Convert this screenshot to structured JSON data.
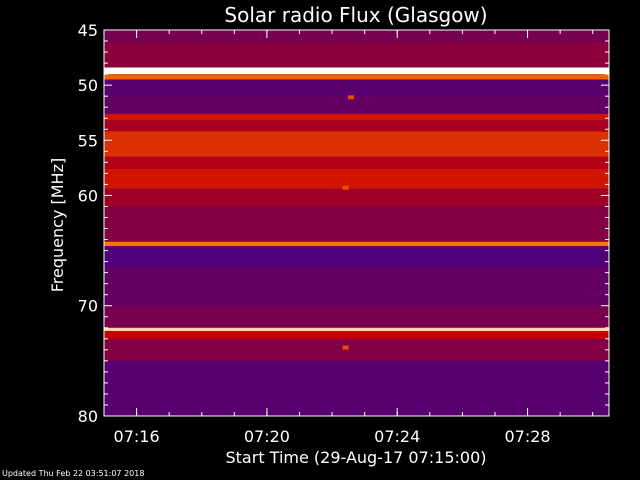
{
  "chart_data": {
    "type": "heatmap",
    "title": "Solar radio Flux (Glasgow)",
    "xlabel": "Start Time (29-Aug-17 07:15:00)",
    "ylabel": "Frequency [MHz]",
    "xlim": [
      "07:15:00",
      "07:30:30"
    ],
    "ylim": [
      45,
      80
    ],
    "y_axis_direction": "increasing downward",
    "x_ticks": [
      "07:16",
      "07:20",
      "07:24",
      "07:28"
    ],
    "y_ticks": [
      45,
      50,
      55,
      60,
      70,
      80
    ],
    "colormap": "blue-red-yellow-white",
    "band_levels_mhz": [
      {
        "freq_start": 45.0,
        "freq_end": 46.2,
        "level": 0.3
      },
      {
        "freq_start": 46.2,
        "freq_end": 48.4,
        "level": 0.35
      },
      {
        "freq_start": 48.4,
        "freq_end": 49.0,
        "level": 1.0
      },
      {
        "freq_start": 49.0,
        "freq_end": 49.5,
        "level": 0.75
      },
      {
        "freq_start": 49.5,
        "freq_end": 51.0,
        "level": 0.22
      },
      {
        "freq_start": 51.0,
        "freq_end": 52.6,
        "level": 0.25
      },
      {
        "freq_start": 52.6,
        "freq_end": 53.2,
        "level": 0.55
      },
      {
        "freq_start": 53.2,
        "freq_end": 54.2,
        "level": 0.42
      },
      {
        "freq_start": 54.2,
        "freq_end": 56.5,
        "level": 0.62
      },
      {
        "freq_start": 56.5,
        "freq_end": 57.6,
        "level": 0.45
      },
      {
        "freq_start": 57.6,
        "freq_end": 59.4,
        "level": 0.55
      },
      {
        "freq_start": 59.4,
        "freq_end": 61.0,
        "level": 0.4
      },
      {
        "freq_start": 61.0,
        "freq_end": 64.2,
        "level": 0.33
      },
      {
        "freq_start": 64.2,
        "freq_end": 64.6,
        "level": 0.8
      },
      {
        "freq_start": 64.6,
        "freq_end": 66.5,
        "level": 0.2
      },
      {
        "freq_start": 66.5,
        "freq_end": 70.0,
        "level": 0.25
      },
      {
        "freq_start": 70.0,
        "freq_end": 72.0,
        "level": 0.3
      },
      {
        "freq_start": 72.0,
        "freq_end": 72.3,
        "level": 0.95
      },
      {
        "freq_start": 72.3,
        "freq_end": 73.0,
        "level": 0.5
      },
      {
        "freq_start": 73.0,
        "freq_end": 75.0,
        "level": 0.33
      },
      {
        "freq_start": 75.0,
        "freq_end": 80.0,
        "level": 0.22
      }
    ],
    "spikes": [
      {
        "time": "07:22:35",
        "freq": 51.1
      },
      {
        "time": "07:22:25",
        "freq": 59.3
      },
      {
        "time": "07:22:25",
        "freq": 73.8
      }
    ],
    "grid": false,
    "legend": "none"
  },
  "footer": {
    "updated": "Updated Thu Feb 22 03:51:07 2018"
  },
  "colors": {
    "background": "#000000",
    "axes": "#ffffff",
    "low": "#0000c8",
    "mid": "#c80000",
    "high": "#ffffff"
  }
}
